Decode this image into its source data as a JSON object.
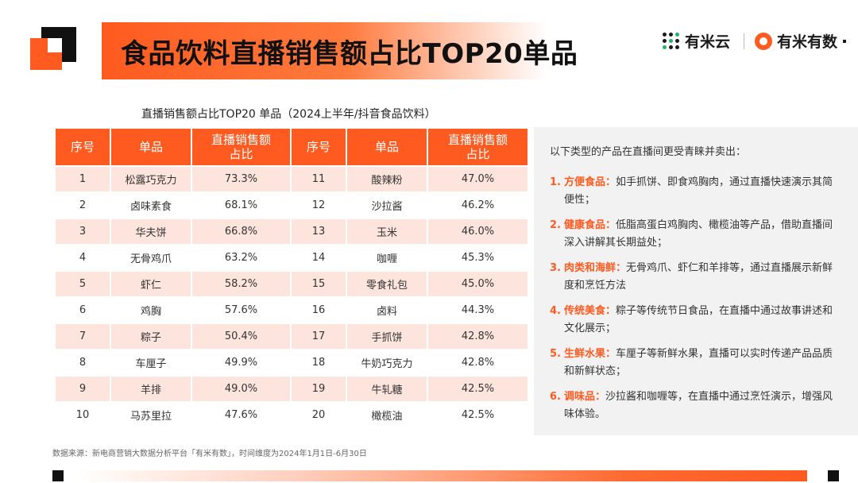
{
  "header": {
    "title": "食品饮料直播销售额占比TOP20单品",
    "brand_primary": "有米云",
    "brand_secondary": "有米有数",
    "accent_color": "#ff5a1f"
  },
  "table": {
    "caption": "直播销售额占比TOP20 单品（2024上半年/抖音食品饮料）",
    "headers": [
      "序号",
      "单品",
      "直播销售额占比",
      "序号",
      "单品",
      "直播销售额占比"
    ],
    "rows": [
      [
        "1",
        "松露巧克力",
        "73.3%",
        "11",
        "酸辣粉",
        "47.0%"
      ],
      [
        "2",
        "卤味素食",
        "68.1%",
        "12",
        "沙拉酱",
        "46.2%"
      ],
      [
        "3",
        "华夫饼",
        "66.8%",
        "13",
        "玉米",
        "46.0%"
      ],
      [
        "4",
        "无骨鸡爪",
        "63.2%",
        "14",
        "咖喱",
        "45.3%"
      ],
      [
        "5",
        "虾仁",
        "58.2%",
        "15",
        "零食礼包",
        "45.0%"
      ],
      [
        "6",
        "鸡胸",
        "57.6%",
        "16",
        "卤料",
        "44.3%"
      ],
      [
        "7",
        "粽子",
        "50.4%",
        "17",
        "手抓饼",
        "42.8%"
      ],
      [
        "8",
        "车厘子",
        "49.9%",
        "18",
        "牛奶巧克力",
        "42.8%"
      ],
      [
        "9",
        "羊排",
        "49.0%",
        "19",
        "牛轧糖",
        "42.5%"
      ],
      [
        "10",
        "马苏里拉",
        "47.6%",
        "20",
        "橄榄油",
        "42.5%"
      ]
    ]
  },
  "panel": {
    "intro": "以下类型的产品在直播间更受青睐并卖出：",
    "items": [
      {
        "num": "1.",
        "term": "方便食品：",
        "text": "如手抓饼、即食鸡胸肉，通过直播快速演示其简便性；"
      },
      {
        "num": "2.",
        "term": "健康食品：",
        "text": "低脂高蛋白鸡胸肉、橄榄油等产品，借助直播间深入讲解其长期益处；"
      },
      {
        "num": "3.",
        "term": "肉类和海鲜：",
        "text": "无骨鸡爪、虾仁和羊排等，通过直播展示新鲜度和烹饪方法"
      },
      {
        "num": "4.",
        "term": "传统美食：",
        "text": "粽子等传统节日食品，在直播中通过故事讲述和文化展示；"
      },
      {
        "num": "5.",
        "term": "生鲜水果：",
        "text": "车厘子等新鲜水果，直播可以实时传递产品品质和新鲜状态；"
      },
      {
        "num": "6.",
        "term": "调味品：",
        "text": "沙拉酱和咖喱等，在直播中通过烹饪演示，增强风味体验。"
      }
    ]
  },
  "footer": {
    "source": "数据来源：新电商营销大数据分析平台「有米有数」，时间维度为2024年1月1日-6月30日"
  }
}
